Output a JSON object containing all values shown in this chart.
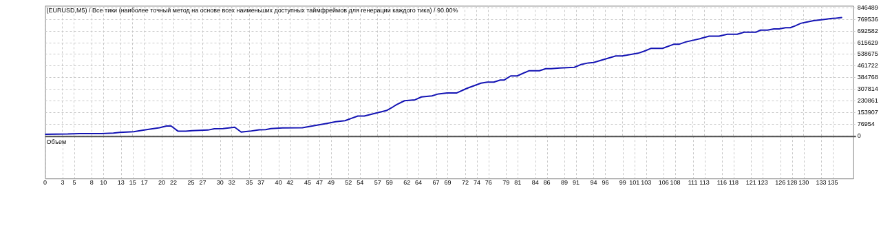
{
  "chart_data": {
    "type": "line",
    "title": "(EURUSD,M5) / Все тики (наиболее точный метод на основе всех наименьших доступных таймфреймов для генерации каждого тика) / 90.00%",
    "annotations": [
      "Объем"
    ],
    "x": [
      0,
      3.9,
      5.9,
      9.7,
      11.7,
      12.8,
      15.2,
      17,
      19.6,
      20.8,
      21.6,
      22.8,
      24.1,
      25.2,
      27.9,
      29,
      30.5,
      32.5,
      33.6,
      35,
      36.7,
      37.8,
      38.7,
      40.7,
      44.1,
      46.1,
      48.3,
      49.8,
      51.4,
      53.6,
      54.7,
      56.7,
      58.5,
      59.6,
      60.2,
      61.6,
      63.4,
      64.5,
      66.3,
      67.4,
      68.9,
      70.5,
      72.3,
      74.7,
      75.8,
      76.9,
      78,
      78.7,
      79.8,
      80.9,
      82.9,
      84.7,
      85.8,
      86.7,
      88.2,
      90.7,
      91.8,
      93.1,
      94,
      95.8,
      97.8,
      98.9,
      101.6,
      102.7,
      103.8,
      105.8,
      107.8,
      108.7,
      109.8,
      112.4,
      113.8,
      115.5,
      116.9,
      118.6,
      119.8,
      121.8,
      122.6,
      123.8,
      124.9,
      125.8,
      126.9,
      127.7,
      128.6,
      129.5,
      130.4,
      131.7,
      133.5,
      134.6,
      135.3,
      136.5
    ],
    "series": [
      {
        "color": "#1414b4",
        "values": [
          10000,
          12000,
          15000,
          15000,
          18000,
          23000,
          27000,
          38000,
          53000,
          65000,
          65000,
          30000,
          30000,
          34000,
          38000,
          46000,
          48000,
          57000,
          25000,
          30000,
          40000,
          41000,
          48000,
          52000,
          53000,
          67000,
          82000,
          93000,
          100000,
          131000,
          131000,
          150000,
          167000,
          191000,
          205000,
          232000,
          238000,
          257000,
          264000,
          277000,
          283000,
          283000,
          314000,
          348000,
          355000,
          355000,
          369000,
          369000,
          396000,
          396000,
          430000,
          430000,
          444000,
          444000,
          448000,
          453000,
          471000,
          482000,
          485000,
          505000,
          528000,
          528000,
          546000,
          560000,
          578000,
          578000,
          606000,
          606000,
          621000,
          644000,
          659000,
          659000,
          672000,
          672000,
          685000,
          685000,
          699000,
          699000,
          707000,
          707000,
          715000,
          715000,
          728000,
          744000,
          751000,
          762000,
          770000,
          775000,
          777000,
          782000
        ]
      }
    ],
    "xlim": [
      0,
      138.5
    ],
    "xticks": [
      0,
      3,
      5,
      8,
      10,
      13,
      15,
      17,
      20,
      22,
      25,
      27,
      30,
      32,
      35,
      37,
      40,
      42,
      45,
      47,
      49,
      52,
      54,
      57,
      59,
      62,
      64,
      67,
      69,
      72,
      74,
      76,
      79,
      81,
      84,
      86,
      89,
      91,
      94,
      96,
      99,
      101,
      103,
      106,
      108,
      111,
      113,
      116,
      118,
      121,
      123,
      126,
      128,
      130,
      133,
      135
    ],
    "ylim": [
      0,
      860000
    ],
    "yticks": [
      0,
      76954,
      153907,
      230861,
      307814,
      384768,
      461722,
      538675,
      615629,
      692582,
      769536,
      846489
    ],
    "grid": true,
    "legend": false,
    "marker": "none",
    "line_style": "solid"
  }
}
